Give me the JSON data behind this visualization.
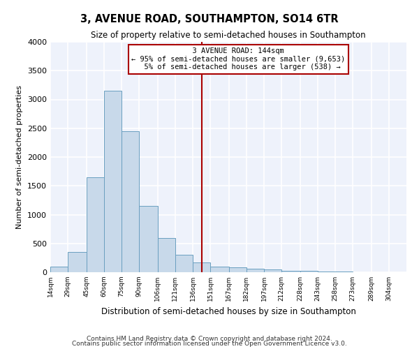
{
  "title": "3, AVENUE ROAD, SOUTHAMPTON, SO14 6TR",
  "subtitle": "Size of property relative to semi-detached houses in Southampton",
  "xlabel": "Distribution of semi-detached houses by size in Southampton",
  "ylabel": "Number of semi-detached properties",
  "footer1": "Contains HM Land Registry data © Crown copyright and database right 2024.",
  "footer2": "Contains public sector information licensed under the Open Government Licence v3.0.",
  "property_label": "3 AVENUE ROAD: 144sqm",
  "pct_smaller": 95,
  "count_smaller": 9653,
  "pct_larger": 5,
  "count_larger": 538,
  "bin_edges": [
    14,
    29,
    45,
    60,
    75,
    90,
    106,
    121,
    136,
    151,
    167,
    182,
    197,
    212,
    228,
    243,
    258,
    273,
    289,
    304,
    319
  ],
  "bar_heights": [
    100,
    350,
    1650,
    3150,
    2450,
    1150,
    600,
    300,
    175,
    100,
    80,
    55,
    45,
    30,
    20,
    15,
    10,
    5,
    3,
    2
  ],
  "bar_facecolor": "#c8d9ea",
  "bar_edgecolor": "#6a9fc0",
  "vline_color": "#aa0000",
  "vline_x": 144,
  "annotation_box_edgecolor": "#aa0000",
  "annotation_box_facecolor": "#ffffff",
  "background_color": "#eef2fb",
  "grid_color": "#ffffff",
  "ylim": [
    0,
    4000
  ],
  "yticks": [
    0,
    500,
    1000,
    1500,
    2000,
    2500,
    3000,
    3500,
    4000
  ]
}
